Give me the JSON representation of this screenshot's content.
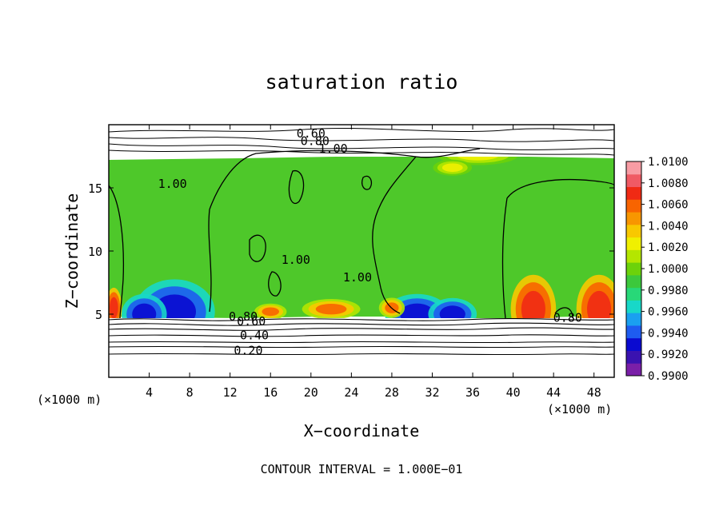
{
  "chart_data": {
    "type": "heatmap",
    "title": "saturation ratio",
    "xlabel": "X−coordinate",
    "ylabel": "Z−coordinate",
    "x_unit": "(×1000 m)",
    "y_unit": "(×1000 m)",
    "footer": "CONTOUR INTERVAL = 1.000E−01",
    "xlim": [
      0,
      50
    ],
    "ylim": [
      0,
      20
    ],
    "x_ticks": [
      4,
      8,
      12,
      16,
      20,
      24,
      28,
      32,
      36,
      40,
      44,
      48
    ],
    "y_ticks": [
      5,
      10,
      15
    ],
    "colorbar": {
      "min": 0.99,
      "max": 1.01,
      "labels": [
        "1.0100",
        "1.0080",
        "1.0060",
        "1.0040",
        "1.0020",
        "1.0000",
        "0.9980",
        "0.9960",
        "0.9940",
        "0.9920",
        "0.9900"
      ],
      "colors": [
        "#7a1fa8",
        "#3a12b0",
        "#0a0ad0",
        "#1e5cf0",
        "#1aa0f0",
        "#18d8c8",
        "#28d878",
        "#3cc83c",
        "#6cd20a",
        "#b4e600",
        "#f0f000",
        "#f8c800",
        "#f89600",
        "#f86400",
        "#f02a14",
        "#f05a64",
        "#f89ca4"
      ]
    },
    "contour_labels": [
      {
        "text": "0.60",
        "x": 20,
        "y": 19.0
      },
      {
        "text": "0.80",
        "x": 20.4,
        "y": 18.4
      },
      {
        "text": "1.00",
        "x": 22.2,
        "y": 17.8
      },
      {
        "text": "1.00",
        "x": 6.3,
        "y": 15.0
      },
      {
        "text": "1.00",
        "x": 18.5,
        "y": 9.0
      },
      {
        "text": "1.00",
        "x": 24.6,
        "y": 7.6
      },
      {
        "text": "0.80",
        "x": 13.3,
        "y": 4.5
      },
      {
        "text": "0.60",
        "x": 14.1,
        "y": 4.1
      },
      {
        "text": "0.40",
        "x": 14.4,
        "y": 3.0
      },
      {
        "text": "0.20",
        "x": 13.8,
        "y": 1.8
      },
      {
        "text": "0.80",
        "x": 45.4,
        "y": 4.4
      }
    ],
    "field_features": [
      {
        "kind": "dry_blue",
        "x": 6.5,
        "y": 5.2,
        "rx": 2.5,
        "ry": 1.6
      },
      {
        "kind": "dry_blue",
        "x": 3.5,
        "y": 5.0,
        "rx": 1.4,
        "ry": 1.0
      },
      {
        "kind": "dry_blue",
        "x": 30.5,
        "y": 5.0,
        "rx": 2.0,
        "ry": 1.0
      },
      {
        "kind": "dry_blue",
        "x": 34.0,
        "y": 5.0,
        "rx": 1.5,
        "ry": 0.8
      },
      {
        "kind": "moist_red",
        "x": 42.0,
        "y": 5.4,
        "rx": 1.4,
        "ry": 1.7
      },
      {
        "kind": "moist_red",
        "x": 48.5,
        "y": 5.4,
        "rx": 1.4,
        "ry": 1.7
      },
      {
        "kind": "moist_red",
        "x": 0.5,
        "y": 5.5,
        "rx": 0.5,
        "ry": 1.0
      },
      {
        "kind": "moist_orange",
        "x": 22.0,
        "y": 5.4,
        "rx": 1.8,
        "ry": 0.5
      },
      {
        "kind": "moist_orange",
        "x": 16.0,
        "y": 5.2,
        "rx": 1.0,
        "ry": 0.4
      },
      {
        "kind": "moist_orange",
        "x": 28.0,
        "y": 5.5,
        "rx": 0.8,
        "ry": 0.5
      },
      {
        "kind": "moist_yellow",
        "x": 36.5,
        "y": 17.6,
        "rx": 2.5,
        "ry": 0.5
      },
      {
        "kind": "moist_yellow",
        "x": 34.0,
        "y": 16.6,
        "rx": 1.2,
        "ry": 0.4
      }
    ]
  }
}
